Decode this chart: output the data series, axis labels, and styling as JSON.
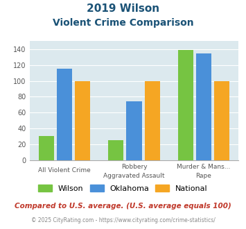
{
  "title_line1": "2019 Wilson",
  "title_line2": "Violent Crime Comparison",
  "category_top": [
    "",
    "Robbery",
    "Murder & Mans..."
  ],
  "category_bottom": [
    "All Violent Crime",
    "Aggravated Assault",
    "Rape"
  ],
  "wilson": [
    31,
    25,
    139
  ],
  "oklahoma": [
    115,
    74,
    135
  ],
  "national": [
    100,
    100,
    100
  ],
  "wilson_color": "#76c442",
  "oklahoma_color": "#4a90d9",
  "national_color": "#f5a623",
  "ylim": [
    0,
    150
  ],
  "yticks": [
    0,
    20,
    40,
    60,
    80,
    100,
    120,
    140
  ],
  "bg_color": "#dce9ee",
  "title_color": "#1a5276",
  "footer_text": "Compared to U.S. average. (U.S. average equals 100)",
  "copyright_text": "© 2025 CityRating.com - https://www.cityrating.com/crime-statistics/",
  "footer_color": "#c0392b",
  "copyright_color": "#888888",
  "legend_labels": [
    "Wilson",
    "Oklahoma",
    "National"
  ]
}
